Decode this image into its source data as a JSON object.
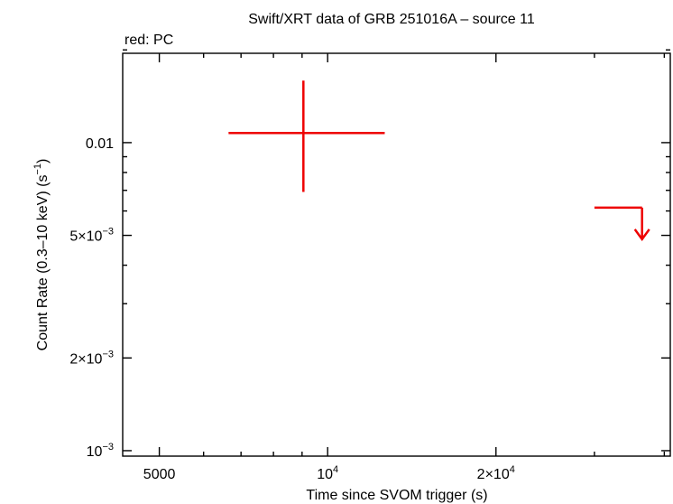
{
  "chart_data": {
    "type": "scatter",
    "title": "Swift/XRT data of GRB 251016A – source 11",
    "subtitle": "red: PC",
    "xlabel": "Time since SVOM trigger (s)",
    "ylabel": "Count Rate (0.3–10 keV) (s",
    "ylabel_sup": "−1",
    "ylabel_tail": ")",
    "x_scale": "log",
    "y_scale": "log",
    "xlim": [
      4300,
      41000
    ],
    "ylim": [
      0.00096,
      0.0195
    ],
    "x_ticks": [
      {
        "value": 5000,
        "base": "5000",
        "sup": ""
      },
      {
        "value": 10000,
        "base": "10",
        "sup": "4"
      },
      {
        "value": 20000,
        "base": "2×10",
        "sup": "4"
      }
    ],
    "y_ticks": [
      {
        "value": 0.01,
        "base": "0.01",
        "sup": ""
      },
      {
        "value": 0.005,
        "base": "5×10",
        "sup": "−3"
      },
      {
        "value": 0.002,
        "base": "2×10",
        "sup": "−3"
      },
      {
        "value": 0.001,
        "base": "10",
        "sup": "−3"
      }
    ],
    "x_minor_ticks": [
      6000,
      7000,
      8000,
      9000,
      30000,
      40000
    ],
    "y_minor_ticks": [
      0.003,
      0.004,
      0.006,
      0.007,
      0.008,
      0.009,
      0.02
    ],
    "series": [
      {
        "color": "#ee0000",
        "points": [
          {
            "x": 9050,
            "xlo": 6650,
            "xhi": 12650,
            "y": 0.01075,
            "ylo": 0.00692,
            "yhi": 0.0159
          }
        ],
        "upper_limits": [
          {
            "x": 36500,
            "xlo": 30000,
            "xhi": 36500,
            "y": 0.00615
          }
        ]
      }
    ]
  }
}
